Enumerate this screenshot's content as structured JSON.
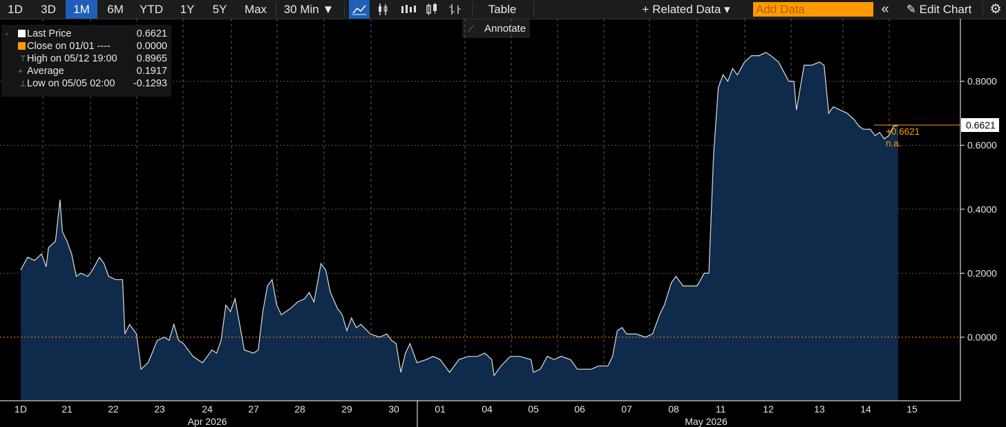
{
  "toolbar": {
    "ranges": [
      {
        "label": "1D",
        "active": false
      },
      {
        "label": "3D",
        "active": false
      },
      {
        "label": "1M",
        "active": true
      },
      {
        "label": "6M",
        "active": false
      },
      {
        "label": "YTD",
        "active": false
      },
      {
        "label": "1Y",
        "active": false
      },
      {
        "label": "5Y",
        "active": false
      },
      {
        "label": "Max",
        "active": false
      }
    ],
    "interval": "30 Min ▼",
    "table_label": "Table",
    "related_data": "+ Related Data ▾",
    "add_data_placeholder": "Add Data",
    "collapse_icon": "«",
    "edit_chart": "✎ Edit Chart",
    "settings_icon": "⚙"
  },
  "annotate_label": "Annotate",
  "legend": {
    "last_price": {
      "label": "Last Price",
      "value": "0.6621",
      "color": "#ffffff"
    },
    "close": {
      "label": "Close on 01/01 ----",
      "value": "0.0000",
      "color": "#ff9a00"
    },
    "high": {
      "label": "High on 05/12 19:00",
      "value": "0.8965"
    },
    "average": {
      "label": "Average",
      "value": "0.1917"
    },
    "low": {
      "label": "Low on 05/05 02:00",
      "value": "-0.1293"
    }
  },
  "chart_data": {
    "type": "area",
    "y_axis": {
      "ylim": [
        -0.2,
        1.0
      ],
      "ticks": [
        "0.8000",
        "0.6000",
        "0.4000",
        "0.2000",
        "0.0000"
      ],
      "position": "right"
    },
    "x_tick_labels": [
      "1D",
      "21",
      "22",
      "23",
      "24",
      "27",
      "28",
      "29",
      "30",
      "01",
      "04",
      "05",
      "06",
      "07",
      "08",
      "11",
      "12",
      "13",
      "14",
      "15"
    ],
    "month_labels": [
      "Apr 2026",
      "May 2026"
    ],
    "last_value_label": "0.6621",
    "change_label": "+0.6621",
    "na_label": "n.a.",
    "reference_line": 0.0,
    "grid": true,
    "colors": {
      "fill": "#0f2a4a",
      "line": "#e0e0e0",
      "reference": "#ff9a00"
    },
    "series": [
      {
        "values": [
          [
            0,
            0.21
          ],
          [
            0.15,
            0.25
          ],
          [
            0.3,
            0.24
          ],
          [
            0.45,
            0.26
          ],
          [
            0.55,
            0.22
          ],
          [
            0.6,
            0.28
          ],
          [
            0.75,
            0.3
          ],
          [
            0.85,
            0.43
          ],
          [
            0.9,
            0.33
          ],
          [
            1,
            0.3
          ],
          [
            1.1,
            0.26
          ],
          [
            1.2,
            0.19
          ],
          [
            1.3,
            0.2
          ],
          [
            1.45,
            0.19
          ],
          [
            1.55,
            0.21
          ],
          [
            1.7,
            0.25
          ],
          [
            1.8,
            0.23
          ],
          [
            1.9,
            0.19
          ],
          [
            2.05,
            0.18
          ],
          [
            2.2,
            0.18
          ],
          [
            2.25,
            0.01
          ],
          [
            2.35,
            0.04
          ],
          [
            2.5,
            0.01
          ],
          [
            2.6,
            -0.1
          ],
          [
            2.75,
            -0.08
          ],
          [
            2.95,
            -0.01
          ],
          [
            3.1,
            0.0
          ],
          [
            3.2,
            -0.01
          ],
          [
            3.3,
            0.04
          ],
          [
            3.4,
            -0.01
          ],
          [
            3.5,
            -0.02
          ],
          [
            3.7,
            -0.06
          ],
          [
            3.9,
            -0.08
          ],
          [
            4.0,
            -0.06
          ],
          [
            4.1,
            -0.04
          ],
          [
            4.2,
            -0.05
          ],
          [
            4.3,
            -0.01
          ],
          [
            4.4,
            0.1
          ],
          [
            4.5,
            0.08
          ],
          [
            4.6,
            0.12
          ],
          [
            4.7,
            0.04
          ],
          [
            4.8,
            -0.04
          ],
          [
            5.0,
            -0.05
          ],
          [
            5.1,
            -0.04
          ],
          [
            5.2,
            0.08
          ],
          [
            5.3,
            0.16
          ],
          [
            5.4,
            0.18
          ],
          [
            5.5,
            0.1
          ],
          [
            5.6,
            0.07
          ],
          [
            5.8,
            0.09
          ],
          [
            5.95,
            0.11
          ],
          [
            6.1,
            0.12
          ],
          [
            6.2,
            0.14
          ],
          [
            6.3,
            0.11
          ],
          [
            6.45,
            0.23
          ],
          [
            6.55,
            0.21
          ],
          [
            6.65,
            0.14
          ],
          [
            6.8,
            0.09
          ],
          [
            6.9,
            0.07
          ],
          [
            7.0,
            0.02
          ],
          [
            7.1,
            0.06
          ],
          [
            7.2,
            0.03
          ],
          [
            7.3,
            0.04
          ],
          [
            7.5,
            0.01
          ],
          [
            7.7,
            0.0
          ],
          [
            7.85,
            0.01
          ],
          [
            7.95,
            -0.01
          ],
          [
            8.05,
            -0.02
          ],
          [
            8.15,
            -0.11
          ],
          [
            8.25,
            -0.05
          ],
          [
            8.35,
            -0.02
          ],
          [
            8.5,
            -0.08
          ],
          [
            8.7,
            -0.07
          ],
          [
            8.85,
            -0.06
          ],
          [
            9.0,
            -0.07
          ],
          [
            9.2,
            -0.11
          ],
          [
            9.4,
            -0.07
          ],
          [
            9.6,
            -0.06
          ],
          [
            9.8,
            -0.06
          ],
          [
            9.95,
            -0.05
          ],
          [
            10.1,
            -0.07
          ],
          [
            10.15,
            -0.12
          ],
          [
            10.3,
            -0.09
          ],
          [
            10.5,
            -0.06
          ],
          [
            10.7,
            -0.06
          ],
          [
            10.95,
            -0.07
          ],
          [
            11.0,
            -0.11
          ],
          [
            11.15,
            -0.1
          ],
          [
            11.3,
            -0.06
          ],
          [
            11.45,
            -0.07
          ],
          [
            11.6,
            -0.06
          ],
          [
            11.8,
            -0.07
          ],
          [
            11.95,
            -0.1
          ],
          [
            12.1,
            -0.1
          ],
          [
            12.25,
            -0.1
          ],
          [
            12.4,
            -0.09
          ],
          [
            12.6,
            -0.09
          ],
          [
            12.7,
            -0.06
          ],
          [
            12.8,
            0.02
          ],
          [
            12.9,
            0.03
          ],
          [
            13.0,
            0.01
          ],
          [
            13.2,
            0.01
          ],
          [
            13.4,
            0.0
          ],
          [
            13.55,
            0.01
          ],
          [
            13.7,
            0.07
          ],
          [
            13.8,
            0.1
          ],
          [
            13.95,
            0.17
          ],
          [
            14.05,
            0.19
          ],
          [
            14.2,
            0.16
          ],
          [
            14.35,
            0.16
          ],
          [
            14.5,
            0.16
          ],
          [
            14.65,
            0.2
          ],
          [
            14.75,
            0.2
          ],
          [
            14.85,
            0.57
          ],
          [
            14.95,
            0.78
          ],
          [
            15.05,
            0.82
          ],
          [
            15.15,
            0.8
          ],
          [
            15.25,
            0.84
          ],
          [
            15.35,
            0.82
          ],
          [
            15.5,
            0.86
          ],
          [
            15.65,
            0.88
          ],
          [
            15.8,
            0.88
          ],
          [
            15.95,
            0.89
          ],
          [
            16.05,
            0.88
          ],
          [
            16.2,
            0.86
          ],
          [
            16.3,
            0.83
          ],
          [
            16.4,
            0.8
          ],
          [
            16.5,
            0.8
          ],
          [
            16.55,
            0.71
          ],
          [
            16.7,
            0.85
          ],
          [
            16.85,
            0.85
          ],
          [
            17.0,
            0.86
          ],
          [
            17.1,
            0.85
          ],
          [
            17.2,
            0.7
          ],
          [
            17.3,
            0.72
          ],
          [
            17.45,
            0.71
          ],
          [
            17.6,
            0.7
          ],
          [
            17.75,
            0.68
          ],
          [
            17.85,
            0.66
          ],
          [
            17.95,
            0.65
          ],
          [
            18.1,
            0.65
          ],
          [
            18.2,
            0.63
          ],
          [
            18.3,
            0.64
          ],
          [
            18.4,
            0.62
          ],
          [
            18.5,
            0.63
          ],
          [
            18.6,
            0.66
          ],
          [
            18.7,
            0.6621
          ]
        ]
      }
    ]
  }
}
